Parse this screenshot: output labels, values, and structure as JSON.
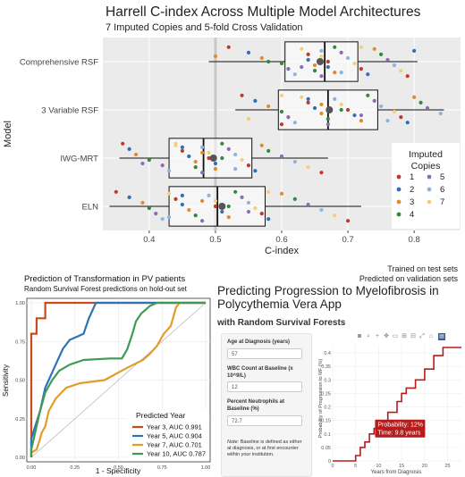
{
  "top": {
    "title": "Harrell C-index Across Multiple Model Architectures",
    "subtitle": "7 Imputed Copies and 5-fold Cross Validation",
    "ylabel": "Model",
    "xlabel": "C-index",
    "notes": [
      "Trained on test sets",
      "Predicted on validation sets"
    ]
  },
  "roc": {
    "title": "Prediction of Transformation in PV patients",
    "subtitle": "Random Survival Forest predictions on hold-out set",
    "ylabel": "Sensitivity",
    "xlabel": "1 - Specificity",
    "legend_title": "Predicted Year"
  },
  "app": {
    "title": "Predicting Progression to Myelofibrosis in Polycythemia Vera App",
    "subtitle": "with Random Survival Forests",
    "fields": [
      {
        "label": "Age at Diagnosis (years)",
        "value": "57"
      },
      {
        "label": "WBC Count at Baseline (x 10^9/L)",
        "value": "12"
      },
      {
        "label": "Percent Neutrophils at Baseline (%)",
        "value": "72.7"
      }
    ],
    "note_prefix": "Note:",
    "note": "Baseline is defined as either at diagnosis, or at first encounter within your institution.",
    "toolbar_icons": [
      "camera-icon",
      "zoom-icon",
      "plus-icon",
      "pan-icon",
      "box-select-icon",
      "zoom-in-icon",
      "zoom-out-icon",
      "autoscale-icon",
      "reset-icon",
      "plotly-logo-icon"
    ],
    "tooltip": [
      "Probability: 12%",
      "Time: 9.8 years"
    ]
  },
  "chart_data": [
    {
      "type": "box",
      "title": "Harrell C-index Across Multiple Model Architectures",
      "subtitle": "7 Imputed Copies and 5-fold Cross Validation",
      "xlabel": "C-index",
      "ylabel": "Model",
      "xlim": [
        0.33,
        0.87
      ],
      "xticks": [
        0.4,
        0.5,
        0.6,
        0.7,
        0.8
      ],
      "reference_line": 0.5,
      "categories": [
        "Comprehensive RSF",
        "3 Variable RSF",
        "IWG-MRT",
        "ELN"
      ],
      "boxes": [
        {
          "model": "Comprehensive RSF",
          "min": 0.49,
          "q1": 0.605,
          "median": 0.665,
          "q3": 0.715,
          "max": 0.805,
          "mean": 0.658
        },
        {
          "model": "3 Variable RSF",
          "min": 0.53,
          "q1": 0.595,
          "median": 0.67,
          "q3": 0.745,
          "max": 0.845,
          "mean": 0.672
        },
        {
          "model": "IWG-MRT",
          "min": 0.355,
          "q1": 0.43,
          "median": 0.482,
          "q3": 0.555,
          "max": 0.67,
          "mean": 0.497
        },
        {
          "model": "ELN",
          "min": 0.34,
          "q1": 0.43,
          "median": 0.503,
          "q3": 0.575,
          "max": 0.72,
          "mean": 0.51
        }
      ],
      "legend_title": "Imputed Copies",
      "legend": [
        {
          "name": "1",
          "color": "#c0392b"
        },
        {
          "name": "2",
          "color": "#2e6fb5"
        },
        {
          "name": "3",
          "color": "#e08a2c"
        },
        {
          "name": "4",
          "color": "#2e8b3e"
        },
        {
          "name": "5",
          "color": "#8e6cb5"
        },
        {
          "name": "6",
          "color": "#8fb3d9"
        },
        {
          "name": "7",
          "color": "#f4cf7a"
        }
      ],
      "grid": true,
      "legend_position": "right",
      "points": {
        "Comprehensive RSF": [
          0.52,
          0.55,
          0.57,
          0.6,
          0.61,
          0.62,
          0.63,
          0.64,
          0.64,
          0.65,
          0.65,
          0.66,
          0.66,
          0.66,
          0.67,
          0.67,
          0.68,
          0.68,
          0.69,
          0.7,
          0.71,
          0.72,
          0.73,
          0.74,
          0.75,
          0.76,
          0.77,
          0.78,
          0.79,
          0.8,
          0.5,
          0.58,
          0.63,
          0.69,
          0.72
        ],
        "3 Variable RSF": [
          0.54,
          0.56,
          0.58,
          0.6,
          0.61,
          0.62,
          0.63,
          0.64,
          0.65,
          0.66,
          0.67,
          0.67,
          0.68,
          0.69,
          0.7,
          0.71,
          0.72,
          0.73,
          0.74,
          0.75,
          0.77,
          0.78,
          0.79,
          0.8,
          0.81,
          0.82,
          0.84,
          0.55,
          0.6,
          0.64,
          0.66,
          0.69,
          0.72,
          0.76,
          0.6
        ],
        "IWG-MRT": [
          0.36,
          0.37,
          0.38,
          0.4,
          0.42,
          0.43,
          0.44,
          0.45,
          0.46,
          0.47,
          0.47,
          0.48,
          0.48,
          0.49,
          0.49,
          0.5,
          0.5,
          0.51,
          0.52,
          0.53,
          0.54,
          0.55,
          0.56,
          0.57,
          0.58,
          0.6,
          0.62,
          0.64,
          0.66,
          0.45,
          0.48,
          0.51,
          0.39,
          0.53,
          0.44
        ],
        "ELN": [
          0.35,
          0.37,
          0.39,
          0.4,
          0.41,
          0.42,
          0.43,
          0.44,
          0.45,
          0.46,
          0.47,
          0.48,
          0.49,
          0.5,
          0.5,
          0.51,
          0.52,
          0.53,
          0.54,
          0.55,
          0.56,
          0.57,
          0.58,
          0.6,
          0.62,
          0.64,
          0.66,
          0.68,
          0.7,
          0.45,
          0.48,
          0.52,
          0.55,
          0.43,
          0.58
        ]
      }
    },
    {
      "type": "line",
      "title": "Prediction of Transformation in PV patients",
      "subtitle": "Random Survival Forest predictions on hold-out set",
      "xlabel": "1 - Specificity",
      "ylabel": "Sensitivity",
      "xlim": [
        0,
        1
      ],
      "ylim": [
        0,
        1
      ],
      "xticks": [
        0.0,
        0.25,
        0.5,
        0.75,
        1.0
      ],
      "xtick_labels": [
        "0.00",
        "0.25",
        "0.50",
        "0.75",
        "1.00"
      ],
      "yticks": [
        0.0,
        0.25,
        0.5,
        0.75,
        1.0
      ],
      "ytick_labels": [
        "0.00",
        "0.25",
        "0.50",
        "0.75",
        "1.00"
      ],
      "legend_title": "Predicted Year",
      "legend_position": "bottom-right",
      "series": [
        {
          "name": "Year 3, AUC 0.991",
          "color": "#c84b1f",
          "x": [
            0,
            0,
            0.03,
            0.03,
            0.08,
            0.08,
            1
          ],
          "y": [
            0,
            0.8,
            0.8,
            0.9,
            0.9,
            1,
            1
          ]
        },
        {
          "name": "Year 5, AUC 0.904",
          "color": "#2e72b8",
          "x": [
            0,
            0,
            0.05,
            0.08,
            0.12,
            0.18,
            0.22,
            0.26,
            0.3,
            0.33,
            0.35,
            0.37,
            1
          ],
          "y": [
            0,
            0.12,
            0.3,
            0.45,
            0.55,
            0.7,
            0.76,
            0.78,
            0.8,
            0.9,
            0.95,
            1,
            1
          ]
        },
        {
          "name": "Year 7, AUC 0.701",
          "color": "#e39b2a",
          "x": [
            0,
            0,
            0.03,
            0.05,
            0.06,
            0.08,
            0.1,
            0.14,
            0.2,
            0.28,
            0.42,
            0.55,
            0.64,
            0.68,
            0.72,
            0.76,
            0.8,
            0.83,
            0.85,
            1
          ],
          "y": [
            0,
            0.03,
            0.05,
            0.12,
            0.16,
            0.2,
            0.3,
            0.38,
            0.45,
            0.48,
            0.5,
            0.58,
            0.63,
            0.67,
            0.72,
            0.8,
            0.85,
            0.97,
            1,
            1
          ]
        },
        {
          "name": "Year 10, AUC 0.787",
          "color": "#3f9a55",
          "x": [
            0,
            0,
            0.05,
            0.08,
            0.12,
            0.16,
            0.22,
            0.3,
            0.45,
            0.52,
            0.55,
            0.58,
            0.6,
            0.63,
            0.68,
            0.72,
            0.75,
            1
          ],
          "y": [
            0,
            0.05,
            0.3,
            0.42,
            0.5,
            0.56,
            0.6,
            0.63,
            0.64,
            0.64,
            0.7,
            0.8,
            0.88,
            0.93,
            0.98,
            1,
            1,
            1
          ]
        }
      ],
      "reference_diagonal": true,
      "grid": true
    },
    {
      "type": "line",
      "xlabel": "Years from Diagnosis",
      "ylabel": "Probability of Progression to MF (%)",
      "xlim": [
        0,
        28
      ],
      "ylim": [
        0,
        0.43
      ],
      "xticks": [
        0,
        5,
        10,
        15,
        20,
        25
      ],
      "yticks": [
        0,
        0.05,
        0.1,
        0.15,
        0.2,
        0.25,
        0.3,
        0.35,
        0.4
      ],
      "series": [
        {
          "color": "#b71c1c",
          "x": [
            0,
            5,
            5,
            6,
            6,
            7,
            7,
            8,
            8,
            9,
            9,
            10,
            10,
            12,
            12,
            14,
            14,
            15,
            15,
            16,
            16,
            18,
            18,
            20,
            20,
            22,
            22,
            24,
            24,
            28
          ],
          "y": [
            0,
            0,
            0.02,
            0.02,
            0.05,
            0.05,
            0.07,
            0.07,
            0.1,
            0.1,
            0.12,
            0.12,
            0.13,
            0.13,
            0.18,
            0.18,
            0.22,
            0.22,
            0.25,
            0.25,
            0.27,
            0.27,
            0.3,
            0.3,
            0.34,
            0.34,
            0.39,
            0.39,
            0.42,
            0.42
          ]
        }
      ],
      "annotation": {
        "x": 9.8,
        "y": 0.12,
        "text": [
          "Probability: 12%",
          "Time: 9.8 years"
        ]
      }
    }
  ]
}
